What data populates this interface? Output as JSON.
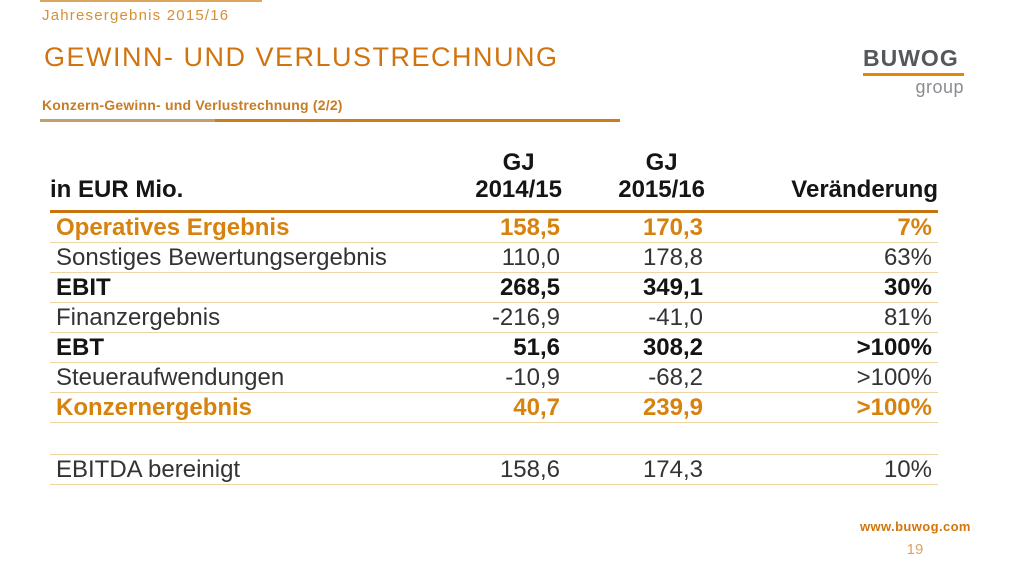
{
  "slide": {
    "kicker": "Jahresergebnis 2015/16",
    "title": "GEWINN- UND VERLUSTRECHNUNG",
    "subtitle": "Konzern-Gewinn- und Verlustrechnung (2/2)",
    "website": "www.buwog.com",
    "page_number": "19"
  },
  "logo": {
    "brand": "BUWOG",
    "suffix": "group"
  },
  "colors": {
    "accent_orange": "#d1740f",
    "value_orange": "#d8820e",
    "thick_rule": "#c7730e",
    "thin_rule": "#efd5a4",
    "logo_gray": "#54585b",
    "logo_rule_orange": "#e8860c",
    "page_number_orange": "#dfa262"
  },
  "table": {
    "unit_label": "in EUR Mio.",
    "columns": {
      "col1": {
        "line1": "GJ",
        "line2": "2014/15"
      },
      "col2": {
        "line1": "GJ",
        "line2": "2015/16"
      },
      "col3": "Veränderung"
    },
    "rows": [
      {
        "label": "Operatives Ergebnis",
        "gj_2014_15": "158,5",
        "gj_2015_16": "170,3",
        "change": "7%",
        "emphasis": "accent"
      },
      {
        "label": "Sonstiges Bewertungsergebnis",
        "gj_2014_15": "110,0",
        "gj_2015_16": "178,8",
        "change": "63%",
        "emphasis": "normal"
      },
      {
        "label": "EBIT",
        "gj_2014_15": "268,5",
        "gj_2015_16": "349,1",
        "change": "30%",
        "emphasis": "bold"
      },
      {
        "label": "Finanzergebnis",
        "gj_2014_15": "-216,9",
        "gj_2015_16": "-41,0",
        "change": "81%",
        "emphasis": "normal"
      },
      {
        "label": "EBT",
        "gj_2014_15": "51,6",
        "gj_2015_16": "308,2",
        "change": ">100%",
        "emphasis": "bold"
      },
      {
        "label": "Steueraufwendungen",
        "gj_2014_15": "-10,9",
        "gj_2015_16": "-68,2",
        "change": ">100%",
        "emphasis": "normal"
      },
      {
        "label": "Konzernergebnis",
        "gj_2014_15": "40,7",
        "gj_2015_16": "239,9",
        "change": ">100%",
        "emphasis": "accent"
      }
    ],
    "appendix_rows": [
      {
        "label": "EBITDA bereinigt",
        "gj_2014_15": "158,6",
        "gj_2015_16": "174,3",
        "change": "10%",
        "emphasis": "normal"
      }
    ]
  }
}
